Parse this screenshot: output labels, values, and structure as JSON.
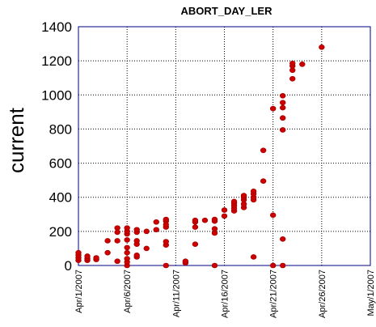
{
  "chart_data": {
    "type": "scatter",
    "title": "ABORT_DAY_LER",
    "xlabel": "",
    "ylabel": "current",
    "xlim": [
      "2007-04-01",
      "2007-05-01"
    ],
    "ylim": [
      0,
      1400
    ],
    "yticks": [
      0,
      200,
      400,
      600,
      800,
      1000,
      1200,
      1400
    ],
    "xticks": [
      "Apr/1/2007",
      "Apr/6/2007",
      "Apr/11/2007",
      "Apr/16/2007",
      "Apr/21/2007",
      "Apr/26/2007",
      "May/1/2007"
    ],
    "grid": true,
    "marker_color": "#cc0000",
    "series": [
      {
        "points": [
          [
            "2007-04-01 00:00",
            30
          ],
          [
            "2007-04-01 00:00",
            45
          ],
          [
            "2007-04-01 00:00",
            60
          ],
          [
            "2007-04-01 00:00",
            75
          ],
          [
            "2007-04-01 22:00",
            30
          ],
          [
            "2007-04-01 22:00",
            40
          ],
          [
            "2007-04-01 22:00",
            55
          ],
          [
            "2007-04-02 20:00",
            35
          ],
          [
            "2007-04-02 20:00",
            45
          ],
          [
            "2007-04-04 00:00",
            75
          ],
          [
            "2007-04-04 00:00",
            145
          ],
          [
            "2007-04-05 00:00",
            25
          ],
          [
            "2007-04-05 00:00",
            145
          ],
          [
            "2007-04-05 00:00",
            195
          ],
          [
            "2007-04-05 00:00",
            220
          ],
          [
            "2007-04-06 00:00",
            0
          ],
          [
            "2007-04-06 00:00",
            20
          ],
          [
            "2007-04-06 00:00",
            40
          ],
          [
            "2007-04-06 00:00",
            75
          ],
          [
            "2007-04-06 00:00",
            105
          ],
          [
            "2007-04-06 00:00",
            150
          ],
          [
            "2007-04-06 00:00",
            185
          ],
          [
            "2007-04-06 00:00",
            200
          ],
          [
            "2007-04-06 00:00",
            220
          ],
          [
            "2007-04-07 00:00",
            50
          ],
          [
            "2007-04-07 00:00",
            60
          ],
          [
            "2007-04-07 00:00",
            125
          ],
          [
            "2007-04-07 00:00",
            145
          ],
          [
            "2007-04-07 00:00",
            195
          ],
          [
            "2007-04-07 00:00",
            210
          ],
          [
            "2007-04-08 00:00",
            100
          ],
          [
            "2007-04-08 00:00",
            200
          ],
          [
            "2007-04-09 00:00",
            210
          ],
          [
            "2007-04-09 00:00",
            255
          ],
          [
            "2007-04-10 00:00",
            0
          ],
          [
            "2007-04-10 00:00",
            120
          ],
          [
            "2007-04-10 00:00",
            140
          ],
          [
            "2007-04-10 00:00",
            225
          ],
          [
            "2007-04-10 00:00",
            240
          ],
          [
            "2007-04-10 00:00",
            260
          ],
          [
            "2007-04-10 00:00",
            270
          ],
          [
            "2007-04-12 00:00",
            15
          ],
          [
            "2007-04-12 00:00",
            25
          ],
          [
            "2007-04-13 00:00",
            125
          ],
          [
            "2007-04-13 00:00",
            225
          ],
          [
            "2007-04-13 00:00",
            255
          ],
          [
            "2007-04-13 00:00",
            265
          ],
          [
            "2007-04-14 00:00",
            265
          ],
          [
            "2007-04-15 00:00",
            0
          ],
          [
            "2007-04-15 00:00",
            190
          ],
          [
            "2007-04-15 00:00",
            215
          ],
          [
            "2007-04-15 00:00",
            260
          ],
          [
            "2007-04-15 00:00",
            270
          ],
          [
            "2007-04-16 00:00",
            290
          ],
          [
            "2007-04-16 00:00",
            325
          ],
          [
            "2007-04-17 00:00",
            320
          ],
          [
            "2007-04-17 00:00",
            335
          ],
          [
            "2007-04-17 00:00",
            350
          ],
          [
            "2007-04-17 00:00",
            365
          ],
          [
            "2007-04-17 00:00",
            375
          ],
          [
            "2007-04-18 00:00",
            340
          ],
          [
            "2007-04-18 00:00",
            360
          ],
          [
            "2007-04-18 00:00",
            385
          ],
          [
            "2007-04-18 00:00",
            400
          ],
          [
            "2007-04-18 00:00",
            410
          ],
          [
            "2007-04-19 00:00",
            50
          ],
          [
            "2007-04-19 00:00",
            385
          ],
          [
            "2007-04-19 00:00",
            400
          ],
          [
            "2007-04-19 00:00",
            420
          ],
          [
            "2007-04-19 00:00",
            435
          ],
          [
            "2007-04-20 00:00",
            495
          ],
          [
            "2007-04-20 00:00",
            675
          ],
          [
            "2007-04-21 00:00",
            0
          ],
          [
            "2007-04-21 00:00",
            295
          ],
          [
            "2007-04-21 00:00",
            920
          ],
          [
            "2007-04-22 00:00",
            0
          ],
          [
            "2007-04-22 00:00",
            155
          ],
          [
            "2007-04-22 00:00",
            795
          ],
          [
            "2007-04-22 00:00",
            865
          ],
          [
            "2007-04-22 00:00",
            925
          ],
          [
            "2007-04-22 00:00",
            955
          ],
          [
            "2007-04-22 00:00",
            995
          ],
          [
            "2007-04-23 00:00",
            1095
          ],
          [
            "2007-04-23 00:00",
            1145
          ],
          [
            "2007-04-23 00:00",
            1170
          ],
          [
            "2007-04-23 00:00",
            1185
          ],
          [
            "2007-04-24 00:00",
            1180
          ],
          [
            "2007-04-26 00:00",
            1280
          ]
        ]
      }
    ]
  }
}
